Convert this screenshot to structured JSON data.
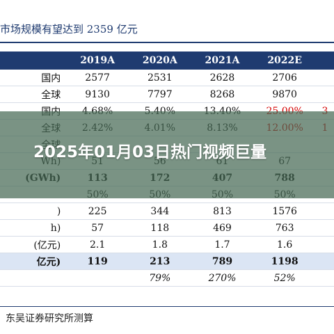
{
  "doc": {
    "title": "市场规模有望达到 2359 亿元",
    "source": "东吴证券研究所测算"
  },
  "table": {
    "headers": [
      "",
      "2019A",
      "2020A",
      "2021A",
      "2022E",
      ""
    ],
    "rows": [
      {
        "style": "",
        "cells": [
          "国内",
          "2577",
          "2531",
          "2628",
          "2706",
          ""
        ]
      },
      {
        "style": "",
        "cells": [
          "全球",
          "9130",
          "7797",
          "8268",
          "9870",
          ""
        ]
      },
      {
        "style": "",
        "cells": [
          "国内",
          "4.68%",
          "5.40%",
          "13.40%",
          "25.00%",
          "3"
        ]
      },
      {
        "style": "",
        "cells": [
          "全球",
          "2.42%",
          "4.01%",
          "8.13%",
          "12.00%",
          "1"
        ]
      },
      {
        "style": "",
        "cells": [
          "全球",
          "",
          "",
          "",
          "",
          ""
        ]
      },
      {
        "style": "",
        "cells": [
          "Wh)",
          "51",
          "56",
          "61",
          "67",
          ""
        ]
      },
      {
        "style": "bold",
        "cells": [
          "(GWh)",
          "113",
          "172",
          "407",
          "788",
          ""
        ]
      },
      {
        "style": "",
        "cells": [
          "",
          "50%",
          "50%",
          "50%",
          "50%",
          ""
        ]
      },
      {
        "style": "",
        "cells": [
          ")",
          "225",
          "344",
          "813",
          "1576",
          ""
        ]
      },
      {
        "style": "",
        "cells": [
          "h)",
          "57",
          "118",
          "469",
          "763",
          ""
        ]
      },
      {
        "style": "",
        "cells": [
          "(亿元)",
          "2.1",
          "1.8",
          "1.7",
          "1.6",
          ""
        ]
      },
      {
        "style": "total",
        "cells": [
          "亿元)",
          "119",
          "213",
          "789",
          "1198",
          ""
        ]
      },
      {
        "style": "growth",
        "cells": [
          "",
          "",
          "79%",
          "270%",
          "52%",
          ""
        ]
      }
    ],
    "red_cells": [
      "2.4",
      "2.5",
      "3.4",
      "3.5"
    ]
  },
  "overlay": {
    "title": "2025年01月03日热门视频巨量"
  }
}
